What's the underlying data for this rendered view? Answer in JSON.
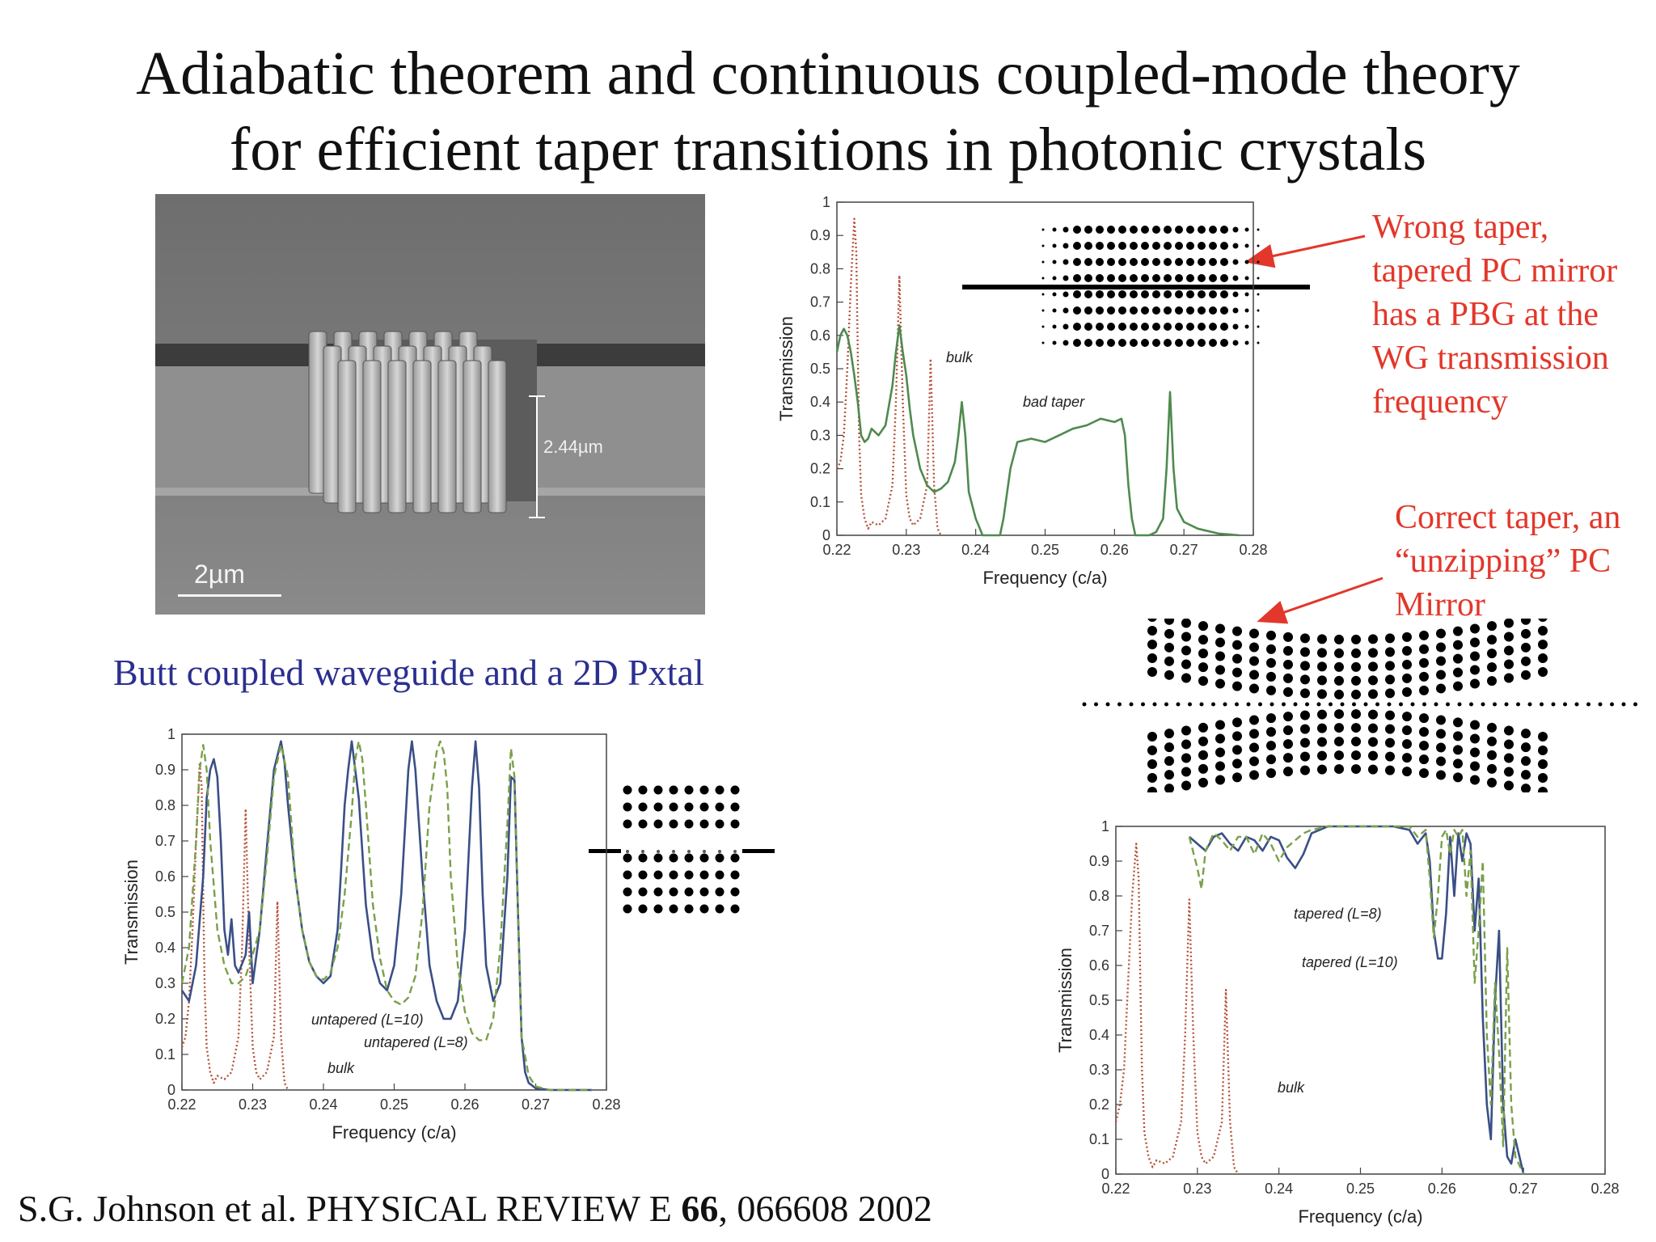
{
  "title": {
    "line1": "Adiabatic theorem and continuous coupled-mode theory",
    "line2": "for efficient taper transitions in photonic crystals"
  },
  "sem": {
    "dimension": "2.44µm",
    "scale": "2µm"
  },
  "caption": "Butt coupled waveguide and a 2D Pxtal",
  "notes": {
    "wrong": [
      "Wrong taper,",
      "tapered PC mirror",
      "has a PBG at the",
      "WG transmission",
      "frequency"
    ],
    "correct": [
      "Correct taper, an",
      "“unzipping” PC",
      "Mirror"
    ]
  },
  "citation": {
    "pre": "S.G. Johnson et al. PHYSICAL REVIEW E ",
    "volume": "66",
    "post": ", 066608 2002"
  },
  "colors": {
    "red_note": "#e2372a",
    "blue_caption": "#2b2f8f",
    "bulk": "#b5533a",
    "green": "#4f8a4f",
    "blue": "#3a4f86",
    "green_dashed": "#7aa04a"
  },
  "chart_data": [
    {
      "type": "line",
      "id": "top",
      "xlabel": "Frequency  (c/a)",
      "ylabel": "Transmission",
      "xlim": [
        0.22,
        0.28
      ],
      "ylim": [
        0,
        1
      ],
      "xticks": [
        "0.22",
        "0.23",
        "0.24",
        "0.25",
        "0.26",
        "0.27",
        "0.28"
      ],
      "yticks": [
        "0",
        "0.1",
        "0.2",
        "0.3",
        "0.4",
        "0.5",
        "0.6",
        "0.7",
        "0.8",
        "0.9",
        "1"
      ],
      "annotations": [
        "bulk",
        "bad taper"
      ],
      "series": [
        {
          "name": "bulk",
          "style": "dotted",
          "color": "bulk",
          "x": [
            0.22,
            0.2205,
            0.221,
            0.2215,
            0.222,
            0.2225,
            0.2228,
            0.223,
            0.2232,
            0.2235,
            0.224,
            0.2245,
            0.225,
            0.226,
            0.227,
            0.228,
            0.2285,
            0.229,
            0.2295,
            0.23,
            0.2305,
            0.231,
            0.232,
            0.233,
            0.2335,
            0.234,
            0.2345,
            0.235
          ],
          "y": [
            0.2,
            0.22,
            0.3,
            0.5,
            0.75,
            0.95,
            0.85,
            0.55,
            0.3,
            0.12,
            0.05,
            0.02,
            0.04,
            0.03,
            0.05,
            0.15,
            0.4,
            0.78,
            0.4,
            0.12,
            0.05,
            0.03,
            0.05,
            0.15,
            0.53,
            0.15,
            0.02,
            0
          ]
        },
        {
          "name": "bad taper",
          "style": "solid",
          "color": "green",
          "x": [
            0.22,
            0.2205,
            0.221,
            0.2215,
            0.222,
            0.2225,
            0.223,
            0.2235,
            0.224,
            0.2245,
            0.225,
            0.2255,
            0.226,
            0.227,
            0.228,
            0.2285,
            0.229,
            0.2295,
            0.23,
            0.2305,
            0.231,
            0.232,
            0.233,
            0.234,
            0.235,
            0.236,
            0.237,
            0.2375,
            0.238,
            0.2385,
            0.239,
            0.24,
            0.241,
            0.242,
            0.243,
            0.2435,
            0.244,
            0.245,
            0.246,
            0.248,
            0.25,
            0.252,
            0.254,
            0.256,
            0.258,
            0.26,
            0.261,
            0.2615,
            0.262,
            0.2625,
            0.263,
            0.264,
            0.265,
            0.266,
            0.267,
            0.2675,
            0.268,
            0.2685,
            0.269,
            0.27,
            0.272,
            0.275,
            0.278
          ],
          "y": [
            0.55,
            0.6,
            0.62,
            0.6,
            0.55,
            0.48,
            0.4,
            0.3,
            0.28,
            0.29,
            0.32,
            0.31,
            0.3,
            0.33,
            0.45,
            0.55,
            0.63,
            0.55,
            0.48,
            0.38,
            0.3,
            0.2,
            0.15,
            0.13,
            0.14,
            0.16,
            0.22,
            0.3,
            0.4,
            0.3,
            0.13,
            0.05,
            0,
            0,
            0,
            0,
            0.05,
            0.2,
            0.28,
            0.29,
            0.28,
            0.3,
            0.32,
            0.33,
            0.35,
            0.34,
            0.35,
            0.3,
            0.15,
            0.05,
            0,
            0,
            0,
            0.01,
            0.05,
            0.2,
            0.43,
            0.2,
            0.08,
            0.04,
            0.02,
            0.005,
            0
          ]
        }
      ]
    },
    {
      "type": "line",
      "id": "bottom-left",
      "xlabel": "Frequency  (c/a)",
      "ylabel": "Transmission",
      "xlim": [
        0.22,
        0.28
      ],
      "ylim": [
        0,
        1
      ],
      "xticks": [
        "0.22",
        "0.23",
        "0.24",
        "0.25",
        "0.26",
        "0.27",
        "0.28"
      ],
      "yticks": [
        "0",
        "0.1",
        "0.2",
        "0.3",
        "0.4",
        "0.5",
        "0.6",
        "0.7",
        "0.8",
        "0.9",
        "1"
      ],
      "annotations": [
        "untapered (L=10)",
        "untapered (L=8)",
        "bulk"
      ],
      "series": [
        {
          "name": "bulk",
          "style": "dotted",
          "color": "bulk",
          "x": [
            0.22,
            0.2205,
            0.221,
            0.2215,
            0.222,
            0.2225,
            0.2228,
            0.223,
            0.2232,
            0.2235,
            0.224,
            0.2245,
            0.225,
            0.226,
            0.227,
            0.228,
            0.2285,
            0.229,
            0.2295,
            0.23,
            0.2305,
            0.231,
            0.232,
            0.233,
            0.2335,
            0.234,
            0.2345,
            0.235
          ],
          "y": [
            0.12,
            0.15,
            0.25,
            0.45,
            0.7,
            0.92,
            0.85,
            0.55,
            0.3,
            0.12,
            0.05,
            0.02,
            0.04,
            0.03,
            0.05,
            0.15,
            0.4,
            0.79,
            0.4,
            0.12,
            0.05,
            0.03,
            0.05,
            0.15,
            0.53,
            0.15,
            0.02,
            0
          ]
        },
        {
          "name": "untapered (L=10)",
          "style": "solid",
          "color": "blue",
          "x": [
            0.22,
            0.221,
            0.222,
            0.223,
            0.2235,
            0.224,
            0.2245,
            0.225,
            0.2255,
            0.226,
            0.2265,
            0.227,
            0.2275,
            0.228,
            0.229,
            0.2295,
            0.23,
            0.231,
            0.232,
            0.233,
            0.234,
            0.2345,
            0.235,
            0.236,
            0.237,
            0.238,
            0.239,
            0.24,
            0.241,
            0.242,
            0.2425,
            0.243,
            0.2435,
            0.244,
            0.245,
            0.246,
            0.247,
            0.248,
            0.249,
            0.25,
            0.251,
            0.252,
            0.2525,
            0.253,
            0.254,
            0.255,
            0.256,
            0.257,
            0.258,
            0.259,
            0.26,
            0.261,
            0.2615,
            0.262,
            0.2625,
            0.263,
            0.264,
            0.265,
            0.266,
            0.2665,
            0.267,
            0.2675,
            0.268,
            0.2685,
            0.269,
            0.27,
            0.272,
            0.275,
            0.278
          ],
          "y": [
            0.28,
            0.25,
            0.35,
            0.6,
            0.82,
            0.9,
            0.93,
            0.88,
            0.7,
            0.45,
            0.38,
            0.48,
            0.35,
            0.33,
            0.38,
            0.5,
            0.3,
            0.45,
            0.68,
            0.9,
            0.98,
            0.92,
            0.8,
            0.6,
            0.45,
            0.36,
            0.32,
            0.3,
            0.32,
            0.45,
            0.62,
            0.8,
            0.9,
            0.98,
            0.82,
            0.52,
            0.37,
            0.3,
            0.28,
            0.35,
            0.55,
            0.9,
            0.98,
            0.9,
            0.6,
            0.35,
            0.25,
            0.2,
            0.2,
            0.25,
            0.45,
            0.85,
            0.98,
            0.85,
            0.55,
            0.35,
            0.25,
            0.3,
            0.6,
            0.88,
            0.87,
            0.5,
            0.15,
            0.05,
            0.02,
            0.005,
            0,
            0,
            0
          ]
        },
        {
          "name": "untapered (L=8)",
          "style": "dashed",
          "color": "green_dashed",
          "x": [
            0.22,
            0.221,
            0.222,
            0.2225,
            0.223,
            0.2235,
            0.224,
            0.225,
            0.226,
            0.227,
            0.228,
            0.229,
            0.23,
            0.231,
            0.232,
            0.233,
            0.234,
            0.235,
            0.236,
            0.237,
            0.238,
            0.239,
            0.24,
            0.241,
            0.242,
            0.243,
            0.244,
            0.2445,
            0.245,
            0.2455,
            0.246,
            0.247,
            0.248,
            0.249,
            0.25,
            0.251,
            0.252,
            0.253,
            0.254,
            0.255,
            0.256,
            0.2565,
            0.257,
            0.2575,
            0.258,
            0.259,
            0.26,
            0.261,
            0.262,
            0.263,
            0.264,
            0.265,
            0.266,
            0.2665,
            0.267,
            0.2675,
            0.268,
            0.269,
            0.27,
            0.272,
            0.278
          ],
          "y": [
            0.3,
            0.4,
            0.7,
            0.9,
            0.97,
            0.9,
            0.7,
            0.45,
            0.35,
            0.3,
            0.3,
            0.32,
            0.38,
            0.45,
            0.65,
            0.88,
            0.97,
            0.88,
            0.6,
            0.45,
            0.36,
            0.32,
            0.31,
            0.33,
            0.4,
            0.55,
            0.78,
            0.93,
            0.98,
            0.93,
            0.8,
            0.52,
            0.37,
            0.28,
            0.25,
            0.24,
            0.26,
            0.32,
            0.5,
            0.8,
            0.95,
            0.98,
            0.95,
            0.85,
            0.6,
            0.35,
            0.22,
            0.16,
            0.14,
            0.14,
            0.2,
            0.4,
            0.75,
            0.96,
            0.88,
            0.5,
            0.15,
            0.04,
            0.01,
            0,
            0
          ]
        }
      ]
    },
    {
      "type": "line",
      "id": "bottom-right",
      "xlabel": "Frequency  (c/a)",
      "ylabel": "Transmission",
      "xlim": [
        0.22,
        0.28
      ],
      "ylim": [
        0,
        1
      ],
      "xticks": [
        "0.22",
        "0.23",
        "0.24",
        "0.25",
        "0.26",
        "0.27",
        "0.28"
      ],
      "yticks": [
        "0",
        "0.1",
        "0.2",
        "0.3",
        "0.4",
        "0.5",
        "0.6",
        "0.7",
        "0.8",
        "0.9",
        "1"
      ],
      "annotations": [
        "tapered (L=8)",
        "tapered (L=10)",
        "bulk"
      ],
      "series": [
        {
          "name": "bulk",
          "style": "dotted",
          "color": "bulk",
          "x": [
            0.22,
            0.2205,
            0.221,
            0.2215,
            0.222,
            0.2225,
            0.2228,
            0.223,
            0.2232,
            0.2235,
            0.224,
            0.2245,
            0.225,
            0.226,
            0.227,
            0.228,
            0.2285,
            0.229,
            0.2295,
            0.23,
            0.2305,
            0.231,
            0.232,
            0.233,
            0.2335,
            0.234,
            0.2345,
            0.235
          ],
          "y": [
            0.15,
            0.2,
            0.3,
            0.55,
            0.8,
            0.95,
            0.85,
            0.55,
            0.3,
            0.12,
            0.05,
            0.02,
            0.04,
            0.03,
            0.05,
            0.15,
            0.4,
            0.79,
            0.4,
            0.12,
            0.05,
            0.03,
            0.05,
            0.15,
            0.53,
            0.15,
            0.02,
            0
          ]
        },
        {
          "name": "tapered (L=10)",
          "style": "solid",
          "color": "blue",
          "x": [
            0.229,
            0.23,
            0.231,
            0.232,
            0.233,
            0.234,
            0.235,
            0.236,
            0.237,
            0.238,
            0.239,
            0.24,
            0.241,
            0.242,
            0.243,
            0.244,
            0.245,
            0.246,
            0.248,
            0.25,
            0.252,
            0.254,
            0.256,
            0.257,
            0.258,
            0.2585,
            0.259,
            0.2595,
            0.26,
            0.2605,
            0.261,
            0.2615,
            0.262,
            0.2625,
            0.263,
            0.2635,
            0.264,
            0.2645,
            0.265,
            0.2655,
            0.266,
            0.2665,
            0.267,
            0.2675,
            0.268,
            0.2685,
            0.269,
            0.27
          ],
          "y": [
            0.97,
            0.95,
            0.93,
            0.97,
            0.98,
            0.95,
            0.93,
            0.97,
            0.96,
            0.93,
            0.97,
            0.96,
            0.91,
            0.88,
            0.92,
            0.98,
            0.99,
            1,
            1,
            1,
            1,
            1,
            0.99,
            0.95,
            0.98,
            0.9,
            0.7,
            0.62,
            0.62,
            0.75,
            0.97,
            0.8,
            0.98,
            0.9,
            0.98,
            0.95,
            0.7,
            0.85,
            0.45,
            0.2,
            0.1,
            0.5,
            0.7,
            0.2,
            0.05,
            0.03,
            0.1,
            0
          ]
        },
        {
          "name": "tapered (L=8)",
          "style": "dashed",
          "color": "green_dashed",
          "x": [
            0.229,
            0.23,
            0.2305,
            0.231,
            0.232,
            0.233,
            0.234,
            0.235,
            0.236,
            0.237,
            0.238,
            0.239,
            0.24,
            0.241,
            0.242,
            0.243,
            0.244,
            0.246,
            0.248,
            0.25,
            0.252,
            0.254,
            0.256,
            0.257,
            0.258,
            0.2585,
            0.259,
            0.2595,
            0.26,
            0.2605,
            0.261,
            0.2615,
            0.262,
            0.2625,
            0.263,
            0.2635,
            0.264,
            0.2645,
            0.265,
            0.2655,
            0.266,
            0.2665,
            0.267,
            0.2675,
            0.268,
            0.2685,
            0.269,
            0.27
          ],
          "y": [
            0.97,
            0.88,
            0.82,
            0.93,
            0.98,
            0.96,
            0.93,
            0.97,
            0.97,
            0.92,
            0.98,
            0.95,
            0.9,
            0.94,
            0.96,
            0.98,
            0.99,
            1,
            1,
            1,
            1,
            1,
            1,
            0.97,
            0.99,
            0.85,
            0.68,
            0.8,
            0.97,
            0.99,
            0.92,
            0.99,
            0.97,
            0.99,
            0.8,
            0.93,
            0.55,
            0.7,
            0.9,
            0.4,
            0.2,
            0.55,
            0.35,
            0.08,
            0.65,
            0.2,
            0.05,
            0
          ]
        }
      ]
    }
  ]
}
